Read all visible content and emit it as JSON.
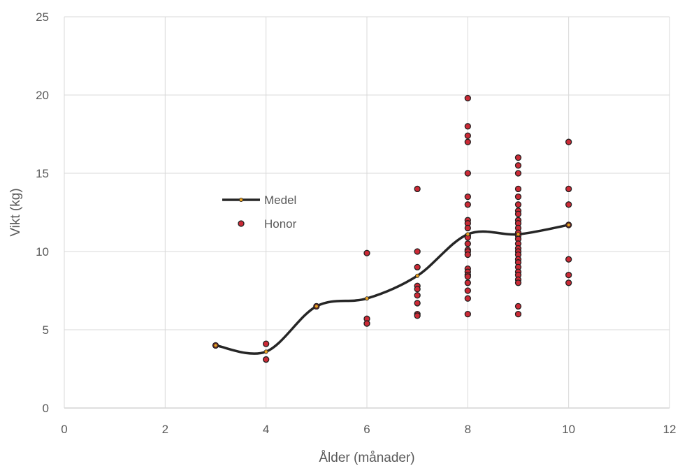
{
  "chart_data": {
    "type": "scatter",
    "xlabel": "Ålder (månader)",
    "ylabel": "Vikt (kg)",
    "xlim": [
      0,
      12
    ],
    "ylim": [
      0,
      25
    ],
    "xticks": [
      0,
      2,
      4,
      6,
      8,
      10,
      12
    ],
    "yticks": [
      0,
      5,
      10,
      15,
      20,
      25
    ],
    "grid": true,
    "legend_position": "left-center",
    "colors": {
      "honor_fill": "#cc2a36",
      "marker_edge": "#1f1f1f",
      "medel_line": "#262626",
      "medel_marker": "#e8a020",
      "grid": "#d9d9d9"
    },
    "series": [
      {
        "name": "Medel",
        "kind": "smooth-line",
        "x": [
          3,
          4,
          5,
          6,
          7,
          8,
          9,
          10
        ],
        "y": [
          4.0,
          3.6,
          6.5,
          7.0,
          8.45,
          11.1,
          11.1,
          11.7
        ]
      },
      {
        "name": "Honor",
        "kind": "scatter",
        "points": [
          [
            3,
            4.0
          ],
          [
            4,
            4.1
          ],
          [
            4,
            3.1
          ],
          [
            5,
            6.5
          ],
          [
            6,
            9.9
          ],
          [
            6,
            5.7
          ],
          [
            6,
            5.4
          ],
          [
            7,
            14.0
          ],
          [
            7,
            10.0
          ],
          [
            7,
            9.0
          ],
          [
            7,
            7.8
          ],
          [
            7,
            7.6
          ],
          [
            7,
            7.2
          ],
          [
            7,
            6.7
          ],
          [
            7,
            6.0
          ],
          [
            7,
            5.9
          ],
          [
            8,
            19.8
          ],
          [
            8,
            18.0
          ],
          [
            8,
            17.4
          ],
          [
            8,
            17.0
          ],
          [
            8,
            15.0
          ],
          [
            8,
            13.5
          ],
          [
            8,
            13.0
          ],
          [
            8,
            12.0
          ],
          [
            8,
            11.8
          ],
          [
            8,
            11.5
          ],
          [
            8,
            11.0
          ],
          [
            8,
            10.9
          ],
          [
            8,
            10.5
          ],
          [
            8,
            10.1
          ],
          [
            8,
            10.0
          ],
          [
            8,
            9.8
          ],
          [
            8,
            8.9
          ],
          [
            8,
            8.7
          ],
          [
            8,
            8.5
          ],
          [
            8,
            8.4
          ],
          [
            8,
            8.0
          ],
          [
            8,
            7.5
          ],
          [
            8,
            7.0
          ],
          [
            8,
            6.0
          ],
          [
            9,
            16.0
          ],
          [
            9,
            15.5
          ],
          [
            9,
            15.0
          ],
          [
            9,
            14.0
          ],
          [
            9,
            13.5
          ],
          [
            9,
            13.0
          ],
          [
            9,
            12.6
          ],
          [
            9,
            12.4
          ],
          [
            9,
            12.0
          ],
          [
            9,
            11.8
          ],
          [
            9,
            11.5
          ],
          [
            9,
            11.2
          ],
          [
            9,
            11.0
          ],
          [
            9,
            10.8
          ],
          [
            9,
            10.5
          ],
          [
            9,
            10.2
          ],
          [
            9,
            10.0
          ],
          [
            9,
            9.8
          ],
          [
            9,
            9.5
          ],
          [
            9,
            9.3
          ],
          [
            9,
            9.0
          ],
          [
            9,
            8.7
          ],
          [
            9,
            8.5
          ],
          [
            9,
            8.2
          ],
          [
            9,
            8.0
          ],
          [
            9,
            6.5
          ],
          [
            9,
            6.0
          ],
          [
            10,
            17.0
          ],
          [
            10,
            14.0
          ],
          [
            10,
            13.0
          ],
          [
            10,
            11.7
          ],
          [
            10,
            9.5
          ],
          [
            10,
            8.5
          ],
          [
            10,
            8.0
          ]
        ]
      }
    ]
  }
}
